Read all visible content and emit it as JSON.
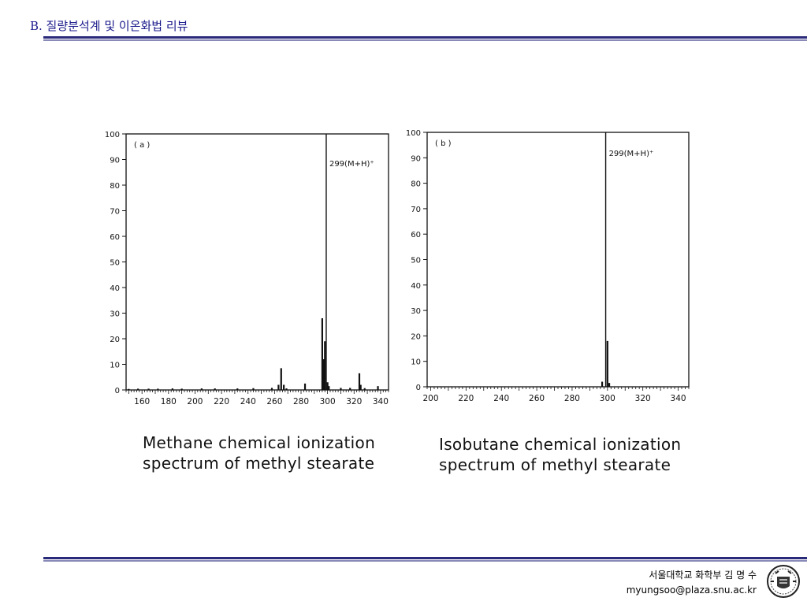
{
  "header": {
    "title": "B. 질량분석계 및 이온화법 리뷰"
  },
  "charts": {
    "a": {
      "caption_line1": "Methane chemical ionization",
      "caption_line2": "spectrum of methyl stearate"
    },
    "b": {
      "caption_line1": "Isobutane chemical ionization",
      "caption_line2": "spectrum of methyl stearate"
    }
  },
  "footer": {
    "affiliation": "서울대학교 화학부 김 명 수",
    "email": "myungsoo@plaza.snu.ac.kr"
  },
  "logo": {
    "icon": "university-seal-icon"
  },
  "colors": {
    "title": "#1a1a8c",
    "rule": "#2a2a7a"
  },
  "chart_data": [
    {
      "type": "bar",
      "panel_label": "( a )",
      "title": "",
      "xlabel": "",
      "ylabel": "",
      "xlim": [
        148,
        346
      ],
      "ylim": [
        0,
        100
      ],
      "xticks": [
        160,
        180,
        200,
        220,
        240,
        260,
        280,
        300,
        320,
        340
      ],
      "yticks": [
        0,
        10,
        20,
        30,
        40,
        50,
        60,
        70,
        80,
        90,
        100
      ],
      "grid": false,
      "annotation": {
        "text": "299(M+H)⁺",
        "x": 299
      },
      "x": [
        150,
        157,
        165,
        172,
        183,
        190,
        205,
        215,
        232,
        244,
        258,
        263,
        265,
        267,
        269,
        283,
        296,
        297,
        298,
        299,
        300,
        301,
        310,
        317,
        324,
        325,
        328,
        338
      ],
      "values": [
        0.4,
        0.5,
        0.5,
        0.5,
        0.6,
        0.5,
        0.6,
        0.6,
        0.6,
        0.7,
        0.8,
        2,
        8.5,
        2,
        0.6,
        2.5,
        28,
        12,
        19,
        100,
        3,
        1.5,
        0.8,
        0.8,
        6.5,
        2,
        0.7,
        1.5
      ]
    },
    {
      "type": "bar",
      "panel_label": "( b )",
      "title": "",
      "xlabel": "",
      "ylabel": "",
      "xlim": [
        198,
        346
      ],
      "ylim": [
        0,
        100
      ],
      "xticks": [
        200,
        220,
        240,
        260,
        280,
        300,
        320,
        340
      ],
      "yticks": [
        0,
        10,
        20,
        30,
        40,
        50,
        60,
        70,
        80,
        90,
        100
      ],
      "grid": false,
      "annotation": {
        "text": "299(M+H)⁺",
        "x": 299
      },
      "x": [
        297,
        299,
        300,
        301
      ],
      "values": [
        2,
        100,
        18,
        1.5
      ]
    }
  ]
}
